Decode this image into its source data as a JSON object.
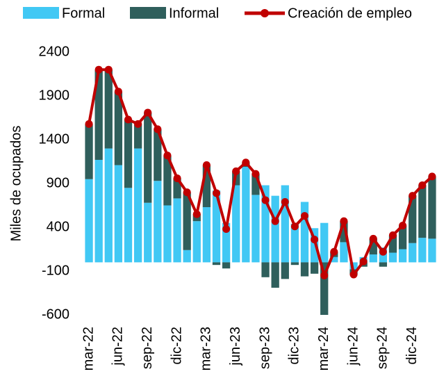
{
  "chart_data": {
    "type": "bar",
    "stacked": true,
    "y_label": "Miles de ocupados",
    "categories": [
      "mar-22",
      null,
      null,
      "jun-22",
      null,
      null,
      "sep-22",
      null,
      null,
      "dic-22",
      null,
      null,
      "mar-23",
      null,
      null,
      "jun-23",
      null,
      null,
      "sep-23",
      null,
      null,
      "dic-23",
      null,
      null,
      "mar-24",
      null,
      null,
      "jun-24",
      null,
      null,
      "sep-24",
      null,
      null,
      "dic-24",
      null,
      null
    ],
    "series": [
      {
        "name": "Formal",
        "type": "bar",
        "color": "#41c8f4",
        "values": [
          950,
          1170,
          1300,
          1110,
          850,
          1300,
          680,
          930,
          650,
          730,
          140,
          470,
          630,
          820,
          450,
          880,
          1090,
          770,
          880,
          760,
          880,
          440,
          690,
          390,
          450,
          60,
          230,
          -80,
          60,
          90,
          170,
          110,
          150,
          220,
          280,
          270
        ]
      },
      {
        "name": "Informal",
        "type": "bar",
        "color": "#2f5f5c",
        "values": [
          630,
          1030,
          900,
          840,
          780,
          280,
          1030,
          590,
          570,
          230,
          660,
          80,
          480,
          -30,
          -70,
          160,
          50,
          240,
          -170,
          -290,
          -190,
          -30,
          -160,
          -130,
          -600,
          60,
          240,
          -60,
          -50,
          180,
          -50,
          200,
          270,
          540,
          600,
          710
        ]
      },
      {
        "name": "Creación de empleo",
        "type": "line",
        "color": "#c00000",
        "values": [
          1580,
          2200,
          2200,
          1950,
          1630,
          1580,
          1710,
          1520,
          1220,
          960,
          800,
          550,
          1110,
          790,
          380,
          1040,
          1140,
          1010,
          710,
          470,
          690,
          410,
          530,
          260,
          -150,
          120,
          470,
          -140,
          10,
          270,
          120,
          310,
          420,
          760,
          880,
          980
        ]
      }
    ],
    "ylim": [
      -600,
      2400
    ],
    "yticks": [
      -600,
      -100,
      400,
      900,
      1400,
      1900,
      2400
    ],
    "grid": false
  }
}
